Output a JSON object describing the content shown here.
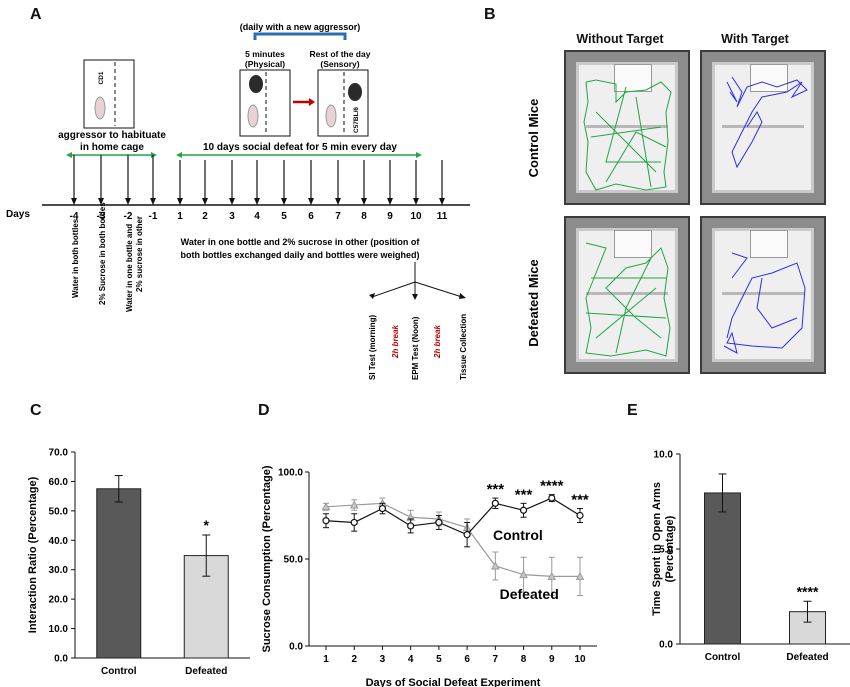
{
  "panels": {
    "a": "A",
    "b": "B",
    "c": "C",
    "d": "D",
    "e": "E"
  },
  "panel_a": {
    "schedule_note": "(daily with a new aggressor)",
    "phase_physical": "5 minutes\n(Physical)",
    "phase_sensory": "Rest of the day\n(Sensory)",
    "cage_label_cd1": "CD1",
    "cage_label_c57": "C57BL/6",
    "habituation_label": "aggressor to habituate\nin home cage",
    "defeat_label": "10 days social defeat for 5 min every day",
    "days_label": "Days",
    "day_ticks": [
      "-4",
      "-3",
      "-2",
      "-1",
      "1",
      "2",
      "3",
      "4",
      "5",
      "6",
      "7",
      "8",
      "9",
      "10",
      "11"
    ],
    "bottle_notes": [
      "Water in both bottles",
      "2% Sucrose in both bottles",
      "Water in one bottle and\n2% sucrose in other"
    ],
    "defeat_water_note": "Water in one bottle and 2% sucrose in other (position of\nboth bottles exchanged daily and bottles were weighed)",
    "day11_tests": [
      "SI Test (morning)",
      "2h break",
      "EPM Test (Noon)",
      "2h break",
      "Tissue Collection"
    ],
    "break_color": "#c00000"
  },
  "panel_b": {
    "col_headers": [
      "Without Target",
      "With Target"
    ],
    "row_headers": [
      "Control Mice",
      "Defeated Mice"
    ],
    "trace_colors": {
      "without_target": "#22a447",
      "with_target": "#2d2df0"
    }
  },
  "chart_data": [
    {
      "panel": "C",
      "type": "bar",
      "categories": [
        "Control",
        "Defeated"
      ],
      "values": [
        57.5,
        34.8
      ],
      "errors": [
        4.5,
        7.0
      ],
      "ylabel": "Interaction Ratio (Percentage)",
      "ylim": [
        0,
        70
      ],
      "yticks": [
        "0.0",
        "10.0",
        "20.0",
        "30.0",
        "40.0",
        "50.0",
        "60.0",
        "70.0"
      ],
      "annotations": [
        "",
        "*"
      ],
      "colors": [
        "#595959",
        "#d9d9d9"
      ]
    },
    {
      "panel": "D",
      "type": "line",
      "x": [
        1,
        2,
        3,
        4,
        5,
        6,
        7,
        8,
        9,
        10
      ],
      "xticks": [
        "1",
        "2",
        "3",
        "4",
        "5",
        "6",
        "7",
        "8",
        "9",
        "10"
      ],
      "ylim": [
        0,
        100
      ],
      "yticks": [
        "0.0",
        "50.0",
        "100.0"
      ],
      "xlabel": "Days of Social Defeat Experiment",
      "ylabel": "Sucrose Consumption (Percentage)",
      "series": [
        {
          "name": "Control",
          "values": [
            72,
            71,
            79,
            69,
            71,
            64,
            82,
            78,
            85,
            75
          ],
          "errors": [
            4,
            5,
            3,
            4,
            4,
            7,
            3,
            4,
            2,
            4
          ]
        },
        {
          "name": "Defeated",
          "values": [
            80,
            81,
            82,
            74,
            73,
            68,
            46,
            41,
            40,
            40
          ],
          "errors": [
            2,
            3,
            3,
            4,
            4,
            5,
            8,
            10,
            11,
            11
          ]
        }
      ],
      "annotations": [
        "***",
        "***",
        "****",
        "***"
      ],
      "annotation_days": [
        7,
        8,
        9,
        10
      ],
      "line_colors": [
        "#111111",
        "#999999"
      ]
    },
    {
      "panel": "E",
      "type": "bar",
      "categories": [
        "Control",
        "Defeated"
      ],
      "values": [
        7.95,
        1.7
      ],
      "errors": [
        1.0,
        0.55
      ],
      "ylabel": "Time Spent in Open Arms\n(Percentage)",
      "ylim": [
        0,
        10
      ],
      "yticks": [
        "0.0",
        "5.0",
        "10.0"
      ],
      "annotations": [
        "",
        "****"
      ],
      "colors": [
        "#595959",
        "#d9d9d9"
      ]
    }
  ]
}
